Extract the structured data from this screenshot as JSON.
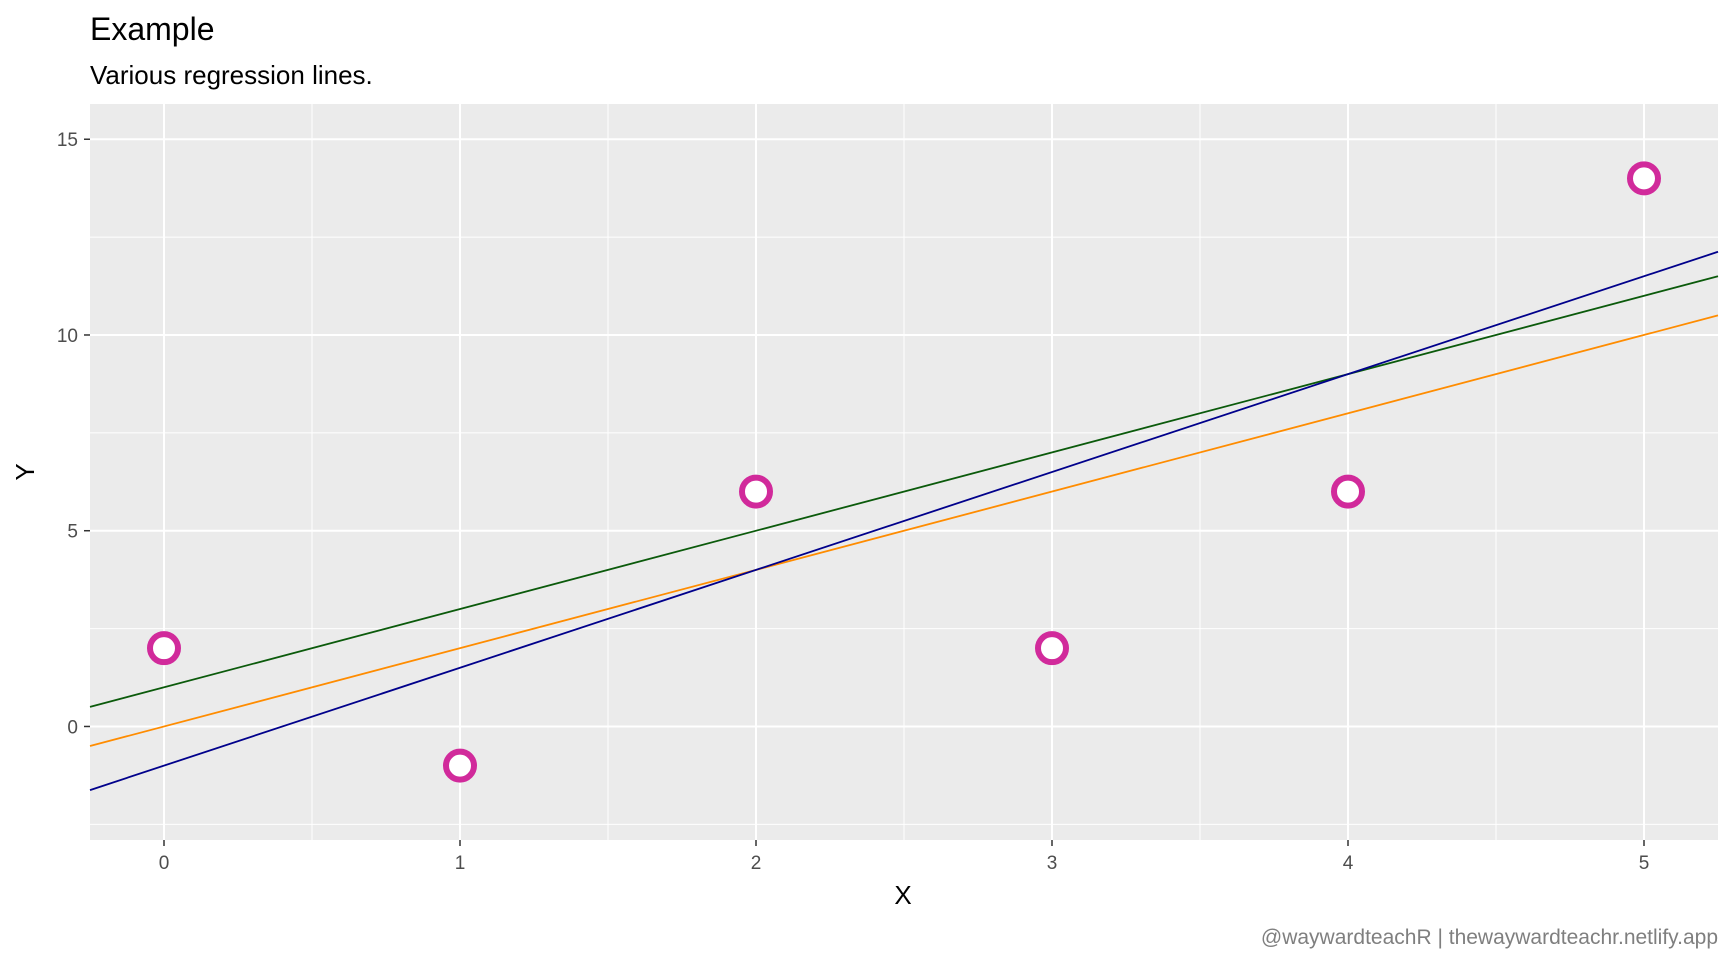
{
  "chart_data": {
    "type": "scatter",
    "title": "Example",
    "subtitle": "Various regression lines.",
    "xlabel": "X",
    "ylabel": "Y",
    "caption": "@waywardteachR | thewaywardteachr.netlify.app",
    "xlim": [
      -0.25,
      5.25
    ],
    "ylim": [
      -2.9,
      15.9
    ],
    "x_ticks": [
      0,
      1,
      2,
      3,
      4,
      5
    ],
    "y_ticks": [
      0,
      5,
      10,
      15
    ],
    "grid": true,
    "panel_background": "#ebebeb",
    "grid_color": "#ffffff",
    "points": {
      "x": [
        0,
        1,
        2,
        3,
        4,
        5
      ],
      "y": [
        2,
        -1,
        6,
        2,
        6,
        14
      ],
      "color": "#d12a9b",
      "fill": "#ffffff"
    },
    "lines": [
      {
        "intercept": 1,
        "slope": 2,
        "color": "#0b5a0b"
      },
      {
        "intercept": 0,
        "slope": 2,
        "color": "#ff8c00"
      },
      {
        "intercept": -1,
        "slope": 2.5,
        "color": "#00008b"
      }
    ]
  }
}
